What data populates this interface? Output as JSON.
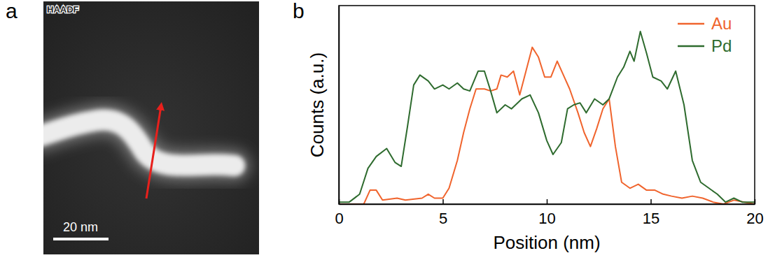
{
  "figure": {
    "panel_labels": [
      "a",
      "b"
    ]
  },
  "image_panel": {
    "badge": "HAADF",
    "scale_bar": "20 nm"
  },
  "chart_data": {
    "type": "line",
    "x_label": "Position (nm)",
    "y_label": "Counts (a.u.)",
    "xlim": [
      0,
      20
    ],
    "xticks": [
      0,
      5,
      10,
      15,
      20
    ],
    "ylim": [
      0,
      1
    ],
    "tick_labels": "x",
    "legend": "top-right",
    "series": [
      {
        "name": "Au",
        "color": "#f0642d",
        "x": [
          0,
          1.2,
          1.5,
          1.8,
          2.1,
          2.8,
          3.2,
          4.0,
          4.3,
          4.6,
          5.0,
          5.3,
          5.7,
          6.0,
          6.3,
          6.6,
          7.0,
          7.3,
          7.6,
          7.8,
          8.1,
          8.4,
          8.7,
          9.0,
          9.3,
          9.6,
          9.9,
          10.2,
          10.5,
          10.8,
          11.1,
          11.5,
          11.8,
          12.1,
          12.4,
          12.7,
          13.0,
          13.3,
          13.6,
          14.0,
          14.4,
          14.8,
          15.2,
          15.6,
          16.0,
          16.5,
          17,
          17.5,
          18,
          18.5,
          19,
          19.5,
          20
        ],
        "values": [
          0.0,
          0.0,
          0.07,
          0.07,
          0.02,
          0.03,
          0.02,
          0.03,
          0.05,
          0.03,
          0.03,
          0.08,
          0.22,
          0.36,
          0.48,
          0.58,
          0.58,
          0.57,
          0.58,
          0.65,
          0.64,
          0.67,
          0.55,
          0.67,
          0.79,
          0.74,
          0.64,
          0.64,
          0.72,
          0.65,
          0.58,
          0.46,
          0.36,
          0.29,
          0.38,
          0.48,
          0.53,
          0.29,
          0.11,
          0.08,
          0.1,
          0.07,
          0.07,
          0.05,
          0.04,
          0.03,
          0.04,
          0.03,
          0.01,
          0.0,
          0.02,
          0.01,
          0.0
        ]
      },
      {
        "name": "Pd",
        "color": "#2e6b2e",
        "x": [
          0,
          0.5,
          1,
          1.4,
          1.8,
          2.3,
          2.7,
          3.0,
          3.3,
          3.6,
          3.9,
          4.3,
          4.6,
          5.0,
          5.3,
          5.7,
          6.0,
          6.3,
          6.7,
          7.0,
          7.3,
          7.6,
          8.0,
          8.3,
          8.8,
          9.2,
          9.6,
          10.0,
          10.3,
          10.7,
          11.0,
          11.3,
          11.6,
          11.9,
          12.3,
          12.7,
          13.0,
          13.4,
          13.7,
          14.0,
          14.2,
          14.5,
          14.8,
          15.1,
          15.5,
          15.8,
          16.2,
          16.6,
          17.0,
          17.4,
          17.8,
          18.2,
          18.6,
          19,
          19.4,
          20
        ],
        "values": [
          0.01,
          0.01,
          0.05,
          0.18,
          0.24,
          0.28,
          0.21,
          0.19,
          0.39,
          0.6,
          0.65,
          0.62,
          0.58,
          0.6,
          0.58,
          0.61,
          0.58,
          0.57,
          0.67,
          0.67,
          0.57,
          0.46,
          0.5,
          0.48,
          0.53,
          0.55,
          0.46,
          0.32,
          0.25,
          0.31,
          0.48,
          0.5,
          0.51,
          0.46,
          0.53,
          0.5,
          0.53,
          0.64,
          0.69,
          0.77,
          0.72,
          0.87,
          0.76,
          0.64,
          0.62,
          0.58,
          0.67,
          0.5,
          0.22,
          0.11,
          0.08,
          0.05,
          0.01,
          0.03,
          0.01,
          0.01
        ]
      }
    ]
  }
}
